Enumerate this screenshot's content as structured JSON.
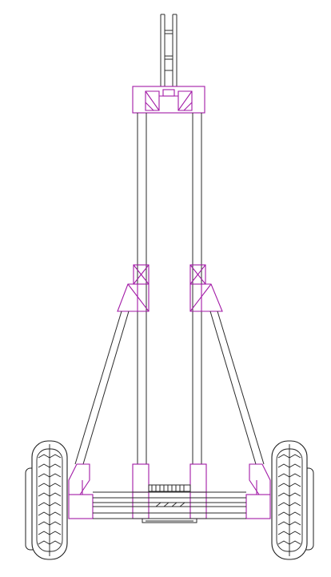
{
  "drawing": {
    "background": "#ffffff",
    "line_color": "#2b2b2b",
    "bracket_color": "#a21aa6",
    "tire_color": "#1f1f1f"
  }
}
